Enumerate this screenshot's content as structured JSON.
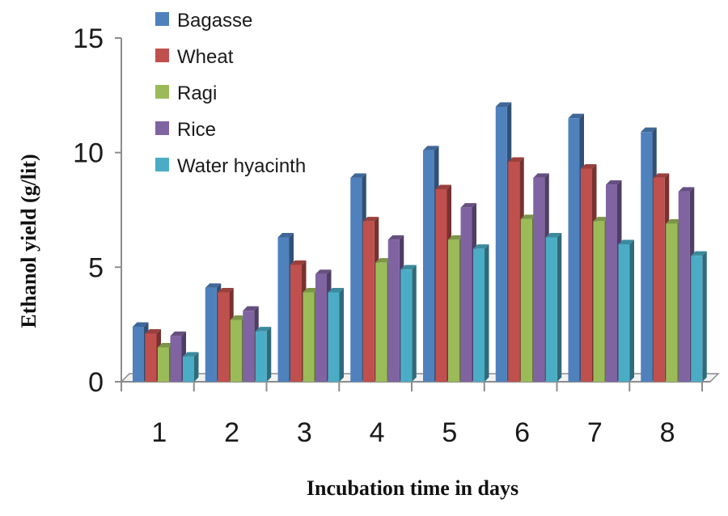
{
  "chart_data": {
    "type": "bar",
    "title": "",
    "xlabel": "Incubation time in days",
    "ylabel": "Ethanol yield (g/lit)",
    "categories": [
      "1",
      "2",
      "3",
      "4",
      "5",
      "6",
      "7",
      "8"
    ],
    "ylim": [
      0,
      15
    ],
    "yticks": [
      "0",
      "5",
      "10",
      "15"
    ],
    "grid": false,
    "legend_position": "top-left",
    "series": [
      {
        "name": "Bagasse",
        "color": "#4F81BD",
        "values": [
          2.4,
          4.1,
          6.3,
          8.9,
          10.1,
          12.0,
          11.5,
          10.9
        ]
      },
      {
        "name": "Wheat",
        "color": "#C0504D",
        "values": [
          2.1,
          3.9,
          5.1,
          7.0,
          8.4,
          9.6,
          9.3,
          8.9
        ]
      },
      {
        "name": "Ragi",
        "color": "#9BBB59",
        "values": [
          1.5,
          2.7,
          3.9,
          5.2,
          6.2,
          7.1,
          7.0,
          6.9
        ]
      },
      {
        "name": "Rice",
        "color": "#8064A2",
        "values": [
          2.0,
          3.1,
          4.7,
          6.2,
          7.6,
          8.9,
          8.6,
          8.3
        ]
      },
      {
        "name": "Water hyacinth",
        "color": "#4BACC6",
        "values": [
          1.1,
          2.2,
          3.9,
          4.9,
          5.8,
          6.3,
          6.0,
          5.5
        ]
      }
    ]
  }
}
